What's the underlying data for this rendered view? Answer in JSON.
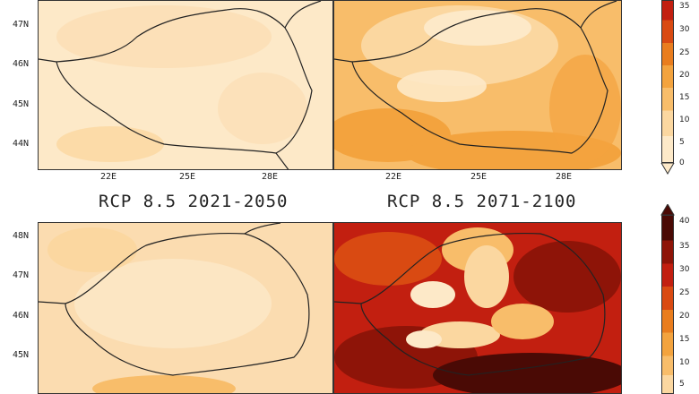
{
  "lat_labels_top": [
    "47N",
    "46N",
    "45N",
    "44N"
  ],
  "lat_labels_bottom": [
    "48N",
    "47N",
    "46N",
    "45N"
  ],
  "lon_labels": [
    "22E",
    "25E",
    "28E"
  ],
  "titles": {
    "top_left": "RCP 8.5 2021-2050",
    "top_right": "RCP 8.5 2071-2100"
  },
  "colorbar_top": [
    "35",
    "30",
    "25",
    "20",
    "15",
    "10",
    "5",
    "0"
  ],
  "colorbar_bottom": [
    "40",
    "35",
    "30",
    "25",
    "20",
    "15",
    "10",
    "5"
  ],
  "colors": {
    "c0": "#fde9c8",
    "c5": "#fbd7a0",
    "c10": "#f8bd6a",
    "c15": "#f3a33e",
    "c20": "#e97d1e",
    "c25": "#d94a12",
    "c30": "#c21f10",
    "c35": "#8e1408",
    "c40": "#4a0a05"
  }
}
